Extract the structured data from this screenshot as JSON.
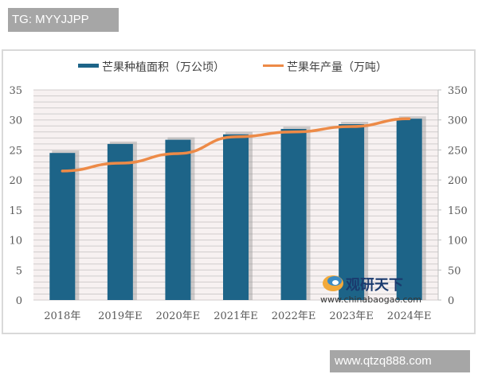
{
  "overlay": {
    "tg_label": "TG: MYYJJPP",
    "site_label": "www.qtzq888.com"
  },
  "watermark": {
    "brand": "观研天下",
    "url": "www.chinabaogao.com"
  },
  "colors": {
    "bar": "#1d6488",
    "line": "#ed8a47",
    "grid": "#d0cccc",
    "plot_bg": "#f7f1f1",
    "axis_text": "#595959"
  },
  "chart_data": {
    "type": "bar+line",
    "title": "",
    "categories": [
      "2018年",
      "2019年E",
      "2020年E",
      "2021年E",
      "2022年E",
      "2023年E",
      "2024年E"
    ],
    "series": [
      {
        "name": "芒果种植面积（万公顷）",
        "type": "bar",
        "axis": "left",
        "values": [
          24.5,
          26.0,
          26.7,
          27.6,
          28.5,
          29.3,
          30.2
        ]
      },
      {
        "name": "芒果年产量（万吨）",
        "type": "line",
        "axis": "right",
        "values": [
          215,
          228,
          244,
          272,
          280,
          289,
          302
        ]
      }
    ],
    "left_axis": {
      "ticks": [
        "0",
        "5",
        "10",
        "15",
        "20",
        "25",
        "30",
        "35"
      ],
      "ylim": [
        0,
        35
      ],
      "label": ""
    },
    "right_axis": {
      "ticks": [
        "0",
        "50",
        "100",
        "150",
        "200",
        "250",
        "300",
        "350"
      ],
      "ylim": [
        0,
        350
      ],
      "label": ""
    },
    "xlabel": "",
    "grid": true,
    "legend_position": "top"
  }
}
